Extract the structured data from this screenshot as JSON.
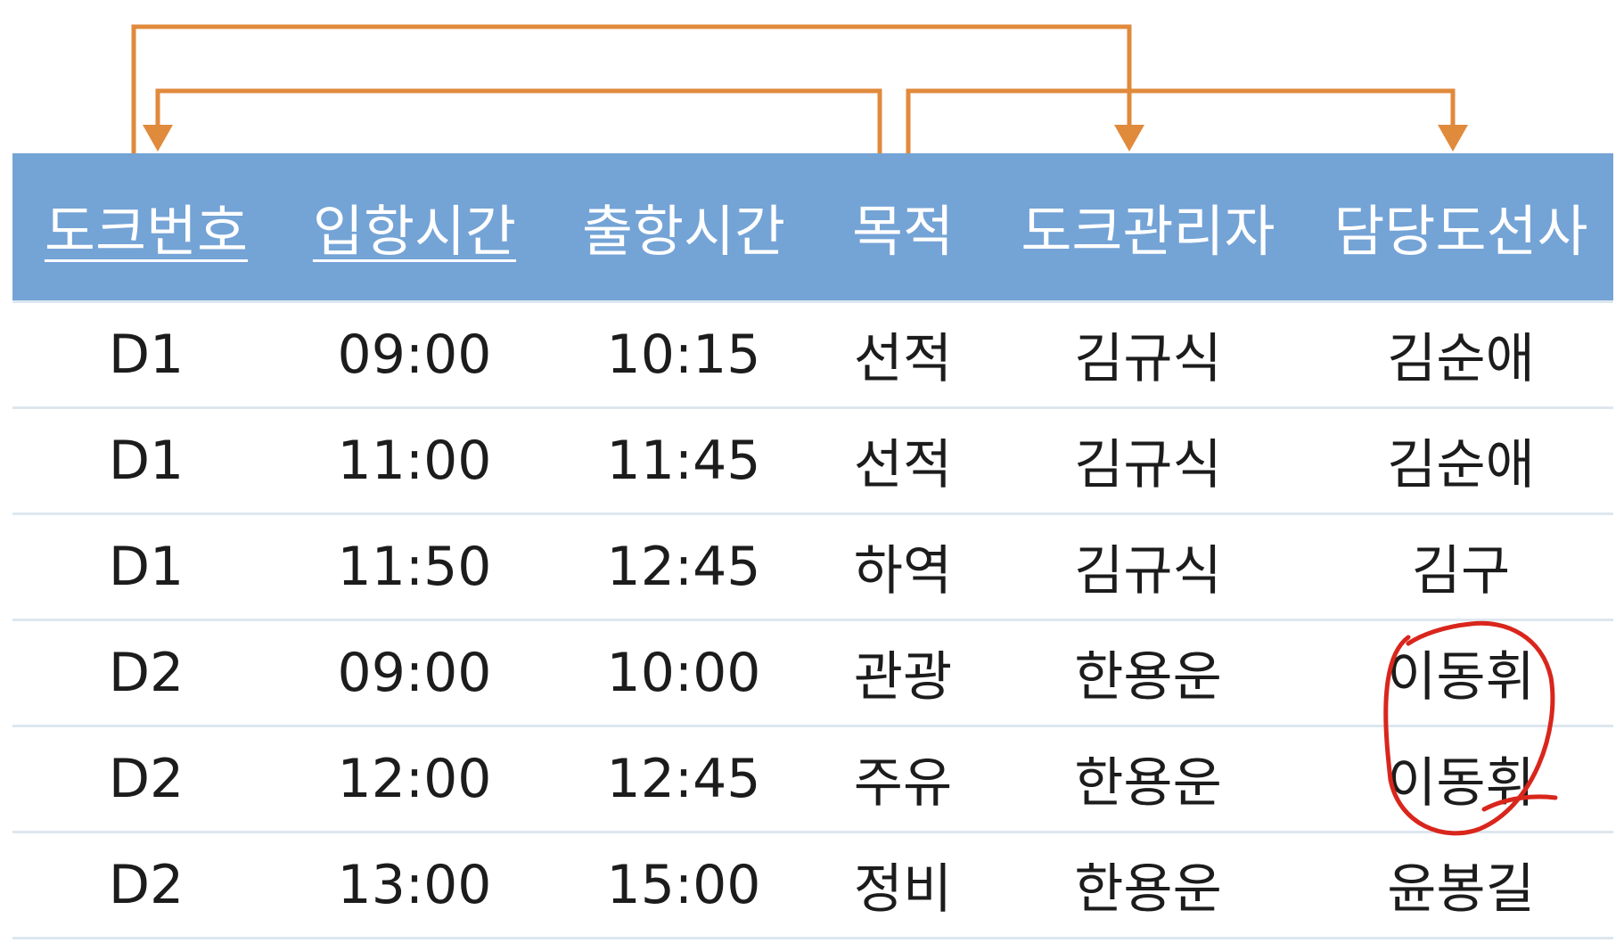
{
  "colors": {
    "header_bg": "#74a3d6",
    "header_text": "#ffffff",
    "arrow": "#e08a3c",
    "row_border": "#dde7ef",
    "annotation": "#d9261c"
  },
  "table": {
    "headers": [
      "도크번호",
      "입항시간",
      "출항시간",
      "목적",
      "도크관리자",
      "담당도선사"
    ],
    "underlined_headers": [
      "도크번호",
      "입항시간"
    ],
    "rows": [
      [
        "D1",
        "09:00",
        "10:15",
        "선적",
        "김규식",
        "김순애"
      ],
      [
        "D1",
        "11:00",
        "11:45",
        "선적",
        "김규식",
        "김순애"
      ],
      [
        "D1",
        "11:50",
        "12:45",
        "하역",
        "김규식",
        "김구"
      ],
      [
        "D2",
        "09:00",
        "10:00",
        "관광",
        "한용운",
        "이동휘"
      ],
      [
        "D2",
        "12:00",
        "12:45",
        "주유",
        "한용운",
        "이동휘"
      ],
      [
        "D2",
        "13:00",
        "15:00",
        "정비",
        "한용운",
        "윤봉길"
      ]
    ]
  },
  "dependency_arrows": [
    {
      "from": "도크번호",
      "to": "도크관리자"
    },
    {
      "from": "목적",
      "to": "도크번호"
    },
    {
      "from": "목적",
      "to": "담당도선사"
    }
  ],
  "annotation": {
    "type": "hand-drawn-circle",
    "target_column": "담당도선사",
    "target_rows": [
      3,
      4
    ]
  }
}
